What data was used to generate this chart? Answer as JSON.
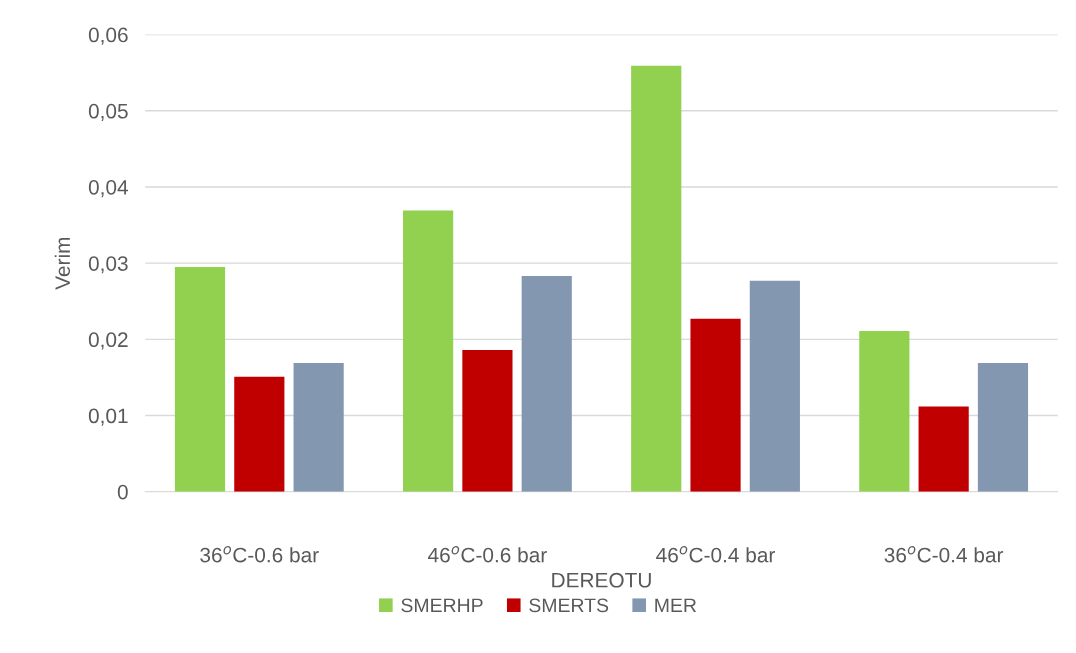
{
  "chart_data": {
    "type": "bar",
    "xlabel": "DEREOTU",
    "ylabel": "Verim",
    "categories": [
      "36$^{o}$C-0.6 bar",
      "46$^{o}$C-0.6 bar",
      "46$^{o}$C-0.4 bar",
      "36$^{o}$C-0.4 bar"
    ],
    "series": [
      {
        "name": "SMERHP",
        "color": "#92d050",
        "values": [
          0.0295,
          0.0369,
          0.0559,
          0.0211
        ]
      },
      {
        "name": "SMERTS",
        "color": "#c00000",
        "values": [
          0.0151,
          0.0186,
          0.0227,
          0.0112
        ]
      },
      {
        "name": "MER",
        "color": "#8497b0",
        "values": [
          0.0169,
          0.0283,
          0.0277,
          0.0169
        ]
      }
    ],
    "ylim": [
      0,
      0.06
    ],
    "yticks": [
      0,
      {
        "value": 0.01,
        "label": "0,01"
      },
      {
        "value": 0.02,
        "label": "0,02"
      },
      {
        "value": 0.03,
        "label": "0,03"
      },
      {
        "value": 0.04,
        "label": "0,04"
      },
      {
        "value": 0.05,
        "label": "0,05"
      },
      {
        "value": 0.06,
        "label": "0,06"
      }
    ],
    "grid": "y",
    "legend": "bottom"
  }
}
